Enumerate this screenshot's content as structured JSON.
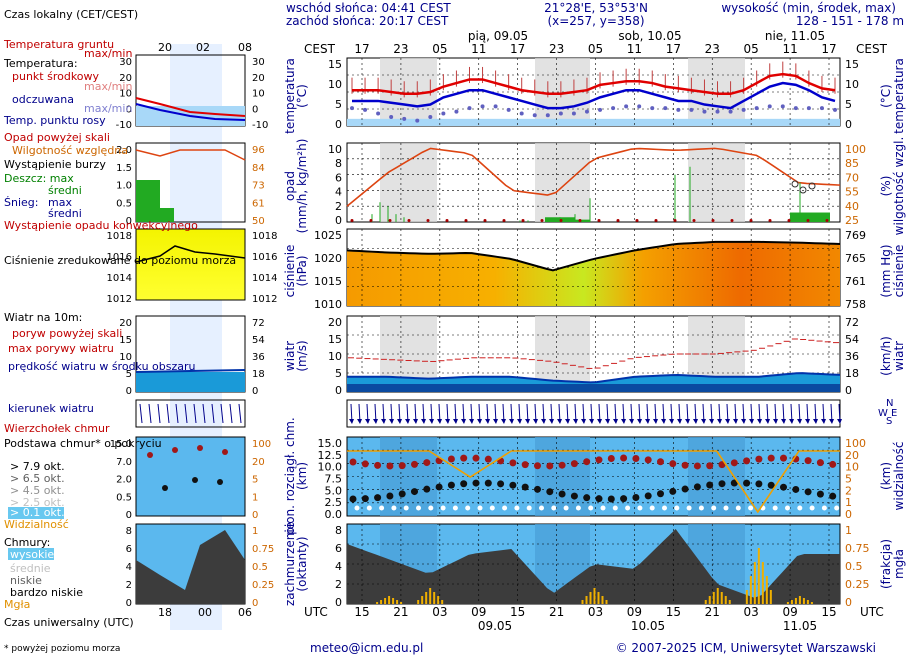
{
  "header": {
    "sunrise": "wschód słońca: 04:41 CEST",
    "sunset": "zachód słońca: 20:17 CEST",
    "coords": "21°28'E, 53°53'N",
    "grid": "(x=257, y=358)",
    "elevation_label": "wysokość (min, środek, max)",
    "elevation_values": "128 - 151 - 178 m"
  },
  "time": {
    "tz_top": "CEST",
    "tz_bottom": "UTC",
    "top_hours": [
      "17",
      "23",
      "05",
      "11",
      "17",
      "23",
      "05",
      "11",
      "17",
      "23",
      "05",
      "11",
      "17"
    ],
    "bottom_hours": [
      "15",
      "21",
      "03",
      "09",
      "15",
      "21",
      "03",
      "09",
      "15",
      "21",
      "03",
      "09",
      "15"
    ],
    "top_days": [
      "pią, 09.05",
      "sob, 10.05",
      "nie, 11.05"
    ],
    "bottom_days": [
      "09.05",
      "10.05",
      "11.05"
    ],
    "legend_top_label": "Czas lokalny (CET/CEST)",
    "legend_top_hours": [
      "20",
      "02",
      "08"
    ],
    "legend_bottom_label": "Czas uniwersalny (UTC)",
    "legend_bottom_hours": [
      "18",
      "00",
      "06"
    ]
  },
  "legend": {
    "temp_ground": "Temperatura gruntu",
    "temp_ground_sub": "max/min",
    "temp_title": "Temperatura:",
    "temp_mid": "punkt środkowy",
    "temp_mid_sub": "max/min",
    "temp_felt": "odczuwana",
    "temp_felt_sub": "max/min",
    "temp_dew": "Temp. punktu rosy",
    "precip_above": "Opad powyżej skali",
    "humidity": "Wilgotność względna",
    "storm": "Wystąpienie burzy",
    "rain": "Deszcz: max",
    "rain_mid": "średni",
    "snow": "Śnieg:",
    "snow_max": "max",
    "snow_mid": "średni",
    "conv": "Wystąpienie opadu konwekcyjnego",
    "pressure": "Ciśnienie zredukowane do poziomu morza",
    "wind_title": "Wiatr na 10m:",
    "gust_above": "poryw powyżej skali",
    "gust_max": "max porywy wiatru",
    "wind_mean": "prędkość wiatru w środku obszaru",
    "wind_dir": "kierunek wiatru",
    "cloud_top": "Wierzchołek chmur",
    "cloud_base": "Podstawa chmur* o pokryciu",
    "okt": [
      "> 7.9 okt.",
      "> 6.5 okt.",
      "> 4.5 okt.",
      "> 2.5 okt.",
      "> 0.1 okt."
    ],
    "visibility": "Widzialność",
    "clouds_title": "Chmury:",
    "clouds_high": "wysokie",
    "clouds_mid": "średnie",
    "clouds_low": "niskie",
    "clouds_vlow": "bardzo niskie",
    "fog": "Mgła",
    "footnote": "* powyżej poziomu morza"
  },
  "axes": {
    "temp": "temperatura (°C)",
    "temp_l1": "temperatura",
    "temp_l2": "(°C)",
    "precip_l1": "opad",
    "precip_l2": "(mm/h, kg/m²h)",
    "hum_l1": "(%)",
    "hum_l2": "wilgotność wzgl.",
    "press_l1": "ciśnienie",
    "press_l2": "(hPa)",
    "press_r1": "(mm Hg)",
    "press_r2": "ciśnienie",
    "wind_l1": "wiatr",
    "wind_l2": "(m/s)",
    "wind_r1": "(km/h)",
    "wind_r2": "wiatr",
    "cloud_l1": "pion. rozciągł. chm.",
    "cloud_l2": "(km)",
    "vis_r1": "(km)",
    "vis_r2": "widzialność",
    "cov_l1": "zachmurzenie",
    "cov_l2": "(oktanty)",
    "fog_r1": "(frakcja)",
    "fog_r2": "mgła",
    "temp_ticks": [
      "15",
      "10",
      "5",
      "0"
    ],
    "precip_ticks": [
      "10",
      "8",
      "6",
      "4",
      "2",
      "0"
    ],
    "hum_ticks": [
      "100",
      "85",
      "70",
      "55",
      "40",
      "25"
    ],
    "press_ticks": [
      "1025",
      "1020",
      "1015",
      "1010"
    ],
    "press_r_ticks": [
      "769",
      "765",
      "761",
      "758"
    ],
    "wind_ticks": [
      "20",
      "15",
      "10",
      "5",
      "0"
    ],
    "wind_r_ticks": [
      "72",
      "54",
      "36",
      "18",
      "0"
    ],
    "cloud_ticks": [
      "15.0",
      "12.5",
      "10.0",
      "7.5",
      "5.0",
      "2.5",
      "0.0"
    ],
    "vis_ticks": [
      "100",
      "20",
      "10",
      "5",
      "2",
      "1",
      "0"
    ],
    "cov_ticks": [
      "8",
      "6",
      "4",
      "2",
      "0"
    ],
    "fog_ticks": [
      "1",
      "0.75",
      "0.5",
      "0.25",
      "0"
    ],
    "mini_temp_ticks": [
      "30",
      "20",
      "10",
      "0",
      "-10"
    ],
    "mini_precip_ticks": [
      "2.0",
      "1.5",
      "1.0",
      "0.5",
      "0"
    ],
    "mini_hum_ticks": [
      "96",
      "84",
      "73",
      "61",
      "50"
    ],
    "mini_press_ticks": [
      "1018",
      "1016",
      "1014",
      "1012"
    ],
    "mini_wind_ticks": [
      "20",
      "15",
      "10",
      "5",
      "0"
    ],
    "mini_wind_r_ticks": [
      "72",
      "54",
      "36",
      "18",
      "0"
    ],
    "mini_cloud_ticks": [
      "15.0",
      "7.0",
      "2.0",
      "0.5",
      "0"
    ],
    "mini_vis_ticks": [
      "100",
      "20",
      "5",
      "1",
      "0"
    ],
    "mini_cov_ticks": [
      "8",
      "6",
      "4",
      "2",
      "0"
    ],
    "mini_fog_ticks": [
      "1",
      "0.75",
      "0.5",
      "0.25",
      "0"
    ]
  },
  "footer": {
    "email": "meteo@icm.edu.pl",
    "copyright": "© 2007-2025 ICM, Uniwersytet Warszawski"
  },
  "colors": {
    "temp": "#e00000",
    "felt": "#0000cc",
    "dew": "#6060c0",
    "humidity": "#dd4411",
    "rain": "#22aa22",
    "wind": "#0033aa",
    "sky": "#a8d8f8",
    "navy": "#00008b",
    "red": "#c00000",
    "orange": "#cc6600"
  },
  "chart_data": [
    {
      "type": "line",
      "name": "temperature",
      "x": [
        "17",
        "19",
        "21",
        "23",
        "01",
        "03",
        "05",
        "07",
        "09",
        "11",
        "13",
        "15",
        "17",
        "19",
        "21",
        "23",
        "01",
        "03",
        "05",
        "07",
        "09",
        "11",
        "13",
        "15",
        "17",
        "19",
        "21",
        "23",
        "01",
        "03",
        "05",
        "07",
        "09",
        "11",
        "13",
        "15",
        "17",
        "19"
      ],
      "series": [
        {
          "name": "punkt środkowy",
          "values": [
            8,
            8,
            8,
            7.5,
            7,
            7,
            7.5,
            9,
            10,
            11,
            11,
            10,
            9,
            8,
            7.5,
            7,
            7,
            7.5,
            8,
            9.5,
            10,
            10.5,
            10.5,
            10,
            9,
            8.5,
            8,
            7.5,
            7,
            7,
            8,
            10,
            12,
            12.5,
            12,
            10,
            8.5,
            8
          ]
        },
        {
          "name": "odczuwana",
          "values": [
            5,
            5,
            5,
            4.5,
            4,
            3.5,
            4,
            6,
            7,
            8,
            8,
            7,
            6,
            5,
            4,
            3,
            3,
            3.5,
            4.5,
            6,
            7,
            8,
            8,
            7,
            6,
            5,
            5,
            4,
            3.5,
            3,
            5,
            7,
            9,
            10,
            9.5,
            8,
            6,
            5
          ]
        },
        {
          "name": "Temp. punktu rosy",
          "values": [
            3,
            2.5,
            1.5,
            0.5,
            0,
            -0.5,
            0.5,
            1.5,
            2,
            3,
            3.5,
            3.5,
            2.5,
            1.5,
            1,
            1,
            1.5,
            1.5,
            2,
            2.5,
            3,
            3.5,
            3.5,
            3,
            3,
            2.5,
            2.5,
            2,
            2,
            2,
            2.5,
            3,
            3.5,
            3.5,
            3,
            3,
            3,
            2.5
          ]
        }
      ],
      "ylim": [
        -2,
        17
      ]
    },
    {
      "type": "line",
      "name": "humidity",
      "x": [
        "17",
        "23",
        "05",
        "11",
        "17",
        "23",
        "05",
        "11",
        "17",
        "23",
        "05",
        "11",
        "17"
      ],
      "series": [
        {
          "name": "Wilgotność względna",
          "values": [
            40,
            72,
            95,
            90,
            55,
            50,
            85,
            95,
            93,
            95,
            88,
            62,
            60
          ]
        }
      ],
      "ylim": [
        25,
        100
      ]
    },
    {
      "type": "bar",
      "name": "precipitation",
      "x": [
        "07",
        "09",
        "11",
        "13",
        "15",
        "21",
        "23",
        "07",
        "09",
        "11",
        "13",
        "15",
        "17"
      ],
      "series": [
        {
          "name": "Deszcz: średni",
          "values": [
            0.5,
            1,
            0.8,
            0.4,
            0.3,
            0.1,
            0.1,
            0.3,
            0.5,
            1,
            2,
            1.5,
            1
          ]
        },
        {
          "name": "Deszcz: max",
          "values": [
            1,
            2.5,
            2,
            1,
            0.6,
            0.2,
            0.2,
            0.6,
            1,
            3,
            6,
            7,
            5
          ]
        }
      ],
      "ylim": [
        0,
        10
      ]
    },
    {
      "type": "line",
      "name": "pressure",
      "x": [
        "17",
        "23",
        "05",
        "11",
        "17",
        "23",
        "05",
        "11",
        "17",
        "23",
        "05",
        "11",
        "17"
      ],
      "series": [
        {
          "name": "Ciśnienie",
          "values": [
            1020,
            1019.5,
            1019.2,
            1019.4,
            1018,
            1015.3,
            1018,
            1020,
            1021.5,
            1022,
            1022,
            1021.8,
            1021.5
          ]
        }
      ],
      "ylim": [
        1007,
        1025
      ]
    },
    {
      "type": "line",
      "name": "wind",
      "x": [
        "17",
        "23",
        "05",
        "11",
        "17",
        "23",
        "05",
        "11",
        "17",
        "23",
        "05",
        "11",
        "17"
      ],
      "series": [
        {
          "name": "prędkość wiatru",
          "values": [
            4,
            4,
            3.5,
            4,
            4,
            3,
            2.5,
            4,
            4.5,
            4,
            4,
            5,
            4.5
          ]
        },
        {
          "name": "max porywy wiatru",
          "values": [
            9,
            8.5,
            8,
            9,
            9,
            8,
            6,
            9,
            10,
            10,
            11,
            14,
            13
          ]
        }
      ],
      "ylim": [
        0,
        20
      ]
    },
    {
      "type": "line",
      "name": "visibility",
      "x": [
        "17",
        "23",
        "05",
        "11",
        "17",
        "23",
        "05",
        "11",
        "17",
        "23",
        "05",
        "11",
        "17"
      ],
      "series": [
        {
          "name": "Widzialność",
          "values": [
            20,
            20,
            20,
            5,
            20,
            20,
            20,
            20,
            20,
            20,
            0.1,
            20,
            20
          ]
        }
      ],
      "ylim": [
        0,
        100
      ]
    },
    {
      "type": "area",
      "name": "cloud cover",
      "x": [
        "17",
        "23",
        "05",
        "11",
        "17",
        "23",
        "05",
        "11",
        "17",
        "23",
        "05",
        "11",
        "17"
      ],
      "series": [
        {
          "name": "niskie",
          "values": [
            6,
            4.5,
            3,
            5,
            5.5,
            1,
            4,
            3.5,
            7.5,
            2,
            0.5,
            5,
            5
          ]
        },
        {
          "name": "Mgła",
          "values": [
            0,
            0.1,
            0.2,
            0,
            0,
            0,
            0.2,
            0,
            0,
            0.2,
            0.7,
            0.1,
            0
          ]
        }
      ],
      "ylim": [
        0,
        8
      ]
    }
  ]
}
